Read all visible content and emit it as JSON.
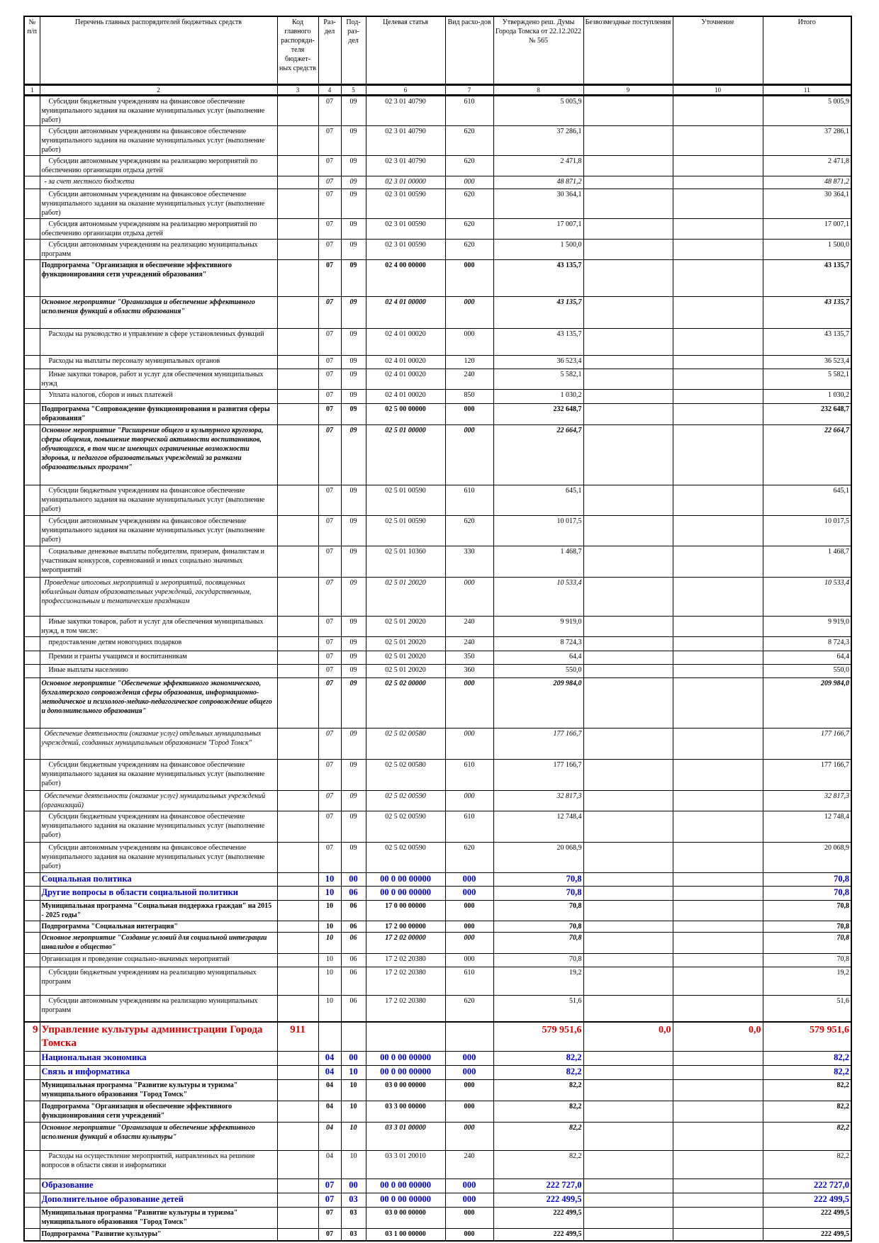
{
  "header": [
    "№ п/п",
    "Перечень главных распорядителей бюджетных средств",
    "Код главного распоряди-теля бюджет-ных средств",
    "Раз-дел",
    "Под-раз-дел",
    "Целевая статья",
    "Вид расхо-дов",
    "Утверждено реш. Думы Города Томска от 22.12.2022 № 565",
    "Безвозмездные поступления",
    "Уточнение",
    "Итого"
  ],
  "column_numbers": [
    "1",
    "2",
    "3",
    "4",
    "5",
    "6",
    "7",
    "8",
    "9",
    "10",
    "11"
  ],
  "rows": [
    {
      "s": "n",
      "name": "Субсидии бюджетным учреждениям на финансовое обеспечение муниципального задания на оказание муниципальных услуг (выполнение работ)",
      "rz": "07",
      "pr": "09",
      "cs": "02 3 01 40790",
      "vr": "610",
      "utv": "5 005,9",
      "itog": "5 005,9"
    },
    {
      "s": "n",
      "name": "Субсидии автономным учреждениям на финансовое обеспечение муниципального задания на оказание муниципальных услуг (выполнение работ)",
      "rz": "07",
      "pr": "09",
      "cs": "02 3 01 40790",
      "vr": "620",
      "utv": "37 286,1",
      "itog": "37 286,1"
    },
    {
      "s": "n",
      "name": "Субсидии автономным учреждениям на реализацию мероприятий по обеспечению организации отдыха детей",
      "rz": "07",
      "pr": "09",
      "cs": "02 3 01 40790",
      "vr": "620",
      "utv": "2 471,8",
      "itog": "2 471,8"
    },
    {
      "s": "i",
      "name": "- за счет местного бюджета",
      "rz": "07",
      "pr": "09",
      "cs": "02 3 01 00000",
      "vr": "000",
      "utv": "48 871,2",
      "itog": "48 871,2"
    },
    {
      "s": "n",
      "name": "Субсидии автономным учреждениям на финансовое обеспечение муниципального задания на оказание муниципальных услуг (выполнение работ)",
      "rz": "07",
      "pr": "09",
      "cs": "02 3 01 00590",
      "vr": "620",
      "utv": "30 364,1",
      "itog": "30 364,1"
    },
    {
      "s": "n",
      "name": "Субсидия автономным учреждениям на реализацию мероприятий по обеспечению организации отдыха детей",
      "rz": "07",
      "pr": "09",
      "cs": "02 3 01 00590",
      "vr": "620",
      "utv": "17 007,1",
      "itog": "17 007,1"
    },
    {
      "s": "n",
      "name": "Субсидии автономным учреждениям на реализацию муниципальных программ",
      "rz": "07",
      "pr": "09",
      "cs": "02 3 01 00590",
      "vr": "620",
      "utv": "1 500,0",
      "itog": "1 500,0"
    },
    {
      "s": "b",
      "name": "Подпрограмма \"Организация и обеспечение эффективного функционирования сети учреждений образования\"",
      "rz": "07",
      "pr": "09",
      "cs": "02 4 00 00000",
      "vr": "000",
      "utv": "43 135,7",
      "itog": "43 135,7"
    },
    {
      "s": "bi",
      "name": "Основное мероприятие \"Организация и обеспечение эффективного исполнения функций в области образования\"",
      "rz": "07",
      "pr": "09",
      "cs": "02 4 01 00000",
      "vr": "000",
      "utv": "43 135,7",
      "itog": "43 135,7"
    },
    {
      "s": "n",
      "name": "Расходы на руководство и управление в сфере установленных функций",
      "rz": "07",
      "pr": "09",
      "cs": "02 4 01 00020",
      "vr": "000",
      "utv": "43 135,7",
      "itog": "43 135,7"
    },
    {
      "s": "n",
      "name": "Расходы на выплаты персоналу муниципальных органов",
      "rz": "07",
      "pr": "09",
      "cs": "02 4 01 00020",
      "vr": "120",
      "utv": "36 523,4",
      "itog": "36 523,4"
    },
    {
      "s": "n",
      "name": "Иные закупки товаров, работ и услуг для обеспечения муниципальных нужд",
      "rz": "07",
      "pr": "09",
      "cs": "02 4 01 00020",
      "vr": "240",
      "utv": "5 582,1",
      "itog": "5 582,1"
    },
    {
      "s": "n",
      "name": "Уплата налогов, сборов и иных платежей",
      "rz": "07",
      "pr": "09",
      "cs": "02 4 01 00020",
      "vr": "850",
      "utv": "1 030,2",
      "itog": "1 030,2"
    },
    {
      "s": "b",
      "name": "Подпрограмма \"Сопровождение функционирования и развития сферы образования\"",
      "rz": "07",
      "pr": "09",
      "cs": "02 5 00 00000",
      "vr": "000",
      "utv": "232 648,7",
      "itog": "232 648,7"
    },
    {
      "s": "bi",
      "name": "Основное мероприятие \"Расширение общего и культурного кругозора, сферы общения, повышение творческой активности воспитанников, обучающихся, в том числе имеющих ограниченные возможности здоровья, и педагогов образовательных учреждений за рамками образовательных программ\"",
      "rz": "07",
      "pr": "09",
      "cs": "02 5 01 00000",
      "vr": "000",
      "utv": "22 664,7",
      "itog": "22 664,7"
    },
    {
      "s": "n",
      "name": "Субсидии бюджетным учреждениям на финансовое обеспечение муниципального задания на оказание муниципальных услуг (выполнение работ)",
      "rz": "07",
      "pr": "09",
      "cs": "02 5 01 00590",
      "vr": "610",
      "utv": "645,1",
      "itog": "645,1"
    },
    {
      "s": "n",
      "name": "Субсидии автономным учреждениям на финансовое обеспечение муниципального задания на оказание муниципальных услуг (выполнение работ)",
      "rz": "07",
      "pr": "09",
      "cs": "02 5 01 00590",
      "vr": "620",
      "utv": "10 017,5",
      "itog": "10 017,5"
    },
    {
      "s": "n",
      "name": "Социальные денежные выплаты победителям, призерам, финалистам и участникам конкурсов, соревнований и иных социально значимых мероприятий",
      "rz": "07",
      "pr": "09",
      "cs": "02 5 01 10360",
      "vr": "330",
      "utv": "1 468,7",
      "itog": "1 468,7"
    },
    {
      "s": "i",
      "name": "Проведение итоговых мероприятий и мероприятий, посвященных юбилейным датам образовательных учреждений, государственным, профессиональным и тематическим праздникам",
      "rz": "07",
      "pr": "09",
      "cs": "02 5 01 20020",
      "vr": "000",
      "utv": "10 533,4",
      "itog": "10 533,4"
    },
    {
      "s": "n",
      "name": "Иные закупки товаров, работ и услуг для обеспечения муниципальных нужд, в том числе:",
      "rz": "07",
      "pr": "09",
      "cs": "02 5 01 20020",
      "vr": "240",
      "utv": "9 919,0",
      "itog": "9 919,0"
    },
    {
      "s": "n",
      "name": "предоставление детям новогодних подарков",
      "rz": "07",
      "pr": "09",
      "cs": "02 5 01 20020",
      "vr": "240",
      "utv": "8 724,3",
      "itog": "8 724,3"
    },
    {
      "s": "n",
      "name": "Премии и гранты учащимся и воспитанникам",
      "rz": "07",
      "pr": "09",
      "cs": "02 5 01 20020",
      "vr": "350",
      "utv": "64,4",
      "itog": "64,4"
    },
    {
      "s": "n",
      "name": "Иные выплаты населению",
      "rz": "07",
      "pr": "09",
      "cs": "02 5 01 20020",
      "vr": "360",
      "utv": "550,0",
      "itog": "550,0"
    },
    {
      "s": "bi",
      "name": "Основное мероприятие \"Обеспечение эффективного экономического, бухгалтерского сопровождения сферы образования, информационно-методическое и психолого-медико-педагогическое сопровождение общего и дополнительного образования\"",
      "rz": "07",
      "pr": "09",
      "cs": "02 5 02 00000",
      "vr": "000",
      "utv": "209 984,0",
      "itog": "209 984,0"
    },
    {
      "s": "i",
      "name": "Обеспечение деятельности (оказание услуг) отдельных муниципальных учреждений, созданных муниципальным образованием \"Город Томск\"",
      "rz": "07",
      "pr": "09",
      "cs": "02 5 02 00580",
      "vr": "000",
      "utv": "177 166,7",
      "itog": "177 166,7"
    },
    {
      "s": "n",
      "name": "Субсидии бюджетным учреждениям на финансовое обеспечение муниципального задания на оказание муниципальных услуг (выполнение работ)",
      "rz": "07",
      "pr": "09",
      "cs": "02 5 02 00580",
      "vr": "610",
      "utv": "177 166,7",
      "itog": "177 166,7"
    },
    {
      "s": "i",
      "name": "Обеспечение деятельности (оказание услуг) муниципальных учреждений (организаций)",
      "rz": "07",
      "pr": "09",
      "cs": "02 5 02 00590",
      "vr": "000",
      "utv": "32 817,3",
      "itog": "32 817,3"
    },
    {
      "s": "n",
      "name": "Субсидии бюджетным учреждениям на финансовое обеспечение муниципального задания на оказание муниципальных услуг (выполнение работ)",
      "rz": "07",
      "pr": "09",
      "cs": "02 5 02 00590",
      "vr": "610",
      "utv": "12 748,4",
      "itog": "12 748,4"
    },
    {
      "s": "n",
      "name": "Субсидии автономным учреждениям на финансовое обеспечение муниципального задания на оказание муниципальных услуг (выполнение работ)",
      "rz": "07",
      "pr": "09",
      "cs": "02 5 02 00590",
      "vr": "620",
      "utv": "20 068,9",
      "itog": "20 068,9"
    },
    {
      "s": "blue",
      "name": "Социальная политика",
      "rz": "10",
      "pr": "00",
      "cs": "00 0 00 00000",
      "vr": "000",
      "utv": "70,8",
      "itog": "70,8"
    },
    {
      "s": "blue",
      "name": "Другие вопросы в области социальной политики",
      "rz": "10",
      "pr": "06",
      "cs": "00 0 00 00000",
      "vr": "000",
      "utv": "70,8",
      "itog": "70,8"
    },
    {
      "s": "b",
      "name": "Муниципальная программа \"Социальная поддержка граждан\" на 2015 - 2025 годы\"",
      "rz": "10",
      "pr": "06",
      "cs": "17 0 00 00000",
      "vr": "000",
      "utv": "70,8",
      "itog": "70,8"
    },
    {
      "s": "b",
      "name": "Подпрограмма \"Социальная интеграция\"",
      "rz": "10",
      "pr": "06",
      "cs": "17 2 00 00000",
      "vr": "000",
      "utv": "70,8",
      "itog": "70,8"
    },
    {
      "s": "bi",
      "name": "Основное мероприятие \"Создание условий для социальной интеграции инвалидов в общество\"",
      "rz": "10",
      "pr": "06",
      "cs": "17 2 02 00000",
      "vr": "000",
      "utv": "70,8",
      "itog": "70,8"
    },
    {
      "s": "n0",
      "name": "Организация и проведение социально-значимых мероприятий",
      "rz": "10",
      "pr": "06",
      "cs": "17 2 02 20380",
      "vr": "000",
      "utv": "70,8",
      "itog": "70,8"
    },
    {
      "s": "n",
      "name": "Субсидии бюджетным учреждениям на реализацию муниципальных программ",
      "rz": "10",
      "pr": "06",
      "cs": "17 2 02 20380",
      "vr": "610",
      "utv": "19,2",
      "itog": "19,2"
    },
    {
      "s": "n",
      "name": "Субсидии автономным учреждениям на реализацию муниципальных программ",
      "rz": "10",
      "pr": "06",
      "cs": "17 2 02 20380",
      "vr": "620",
      "utv": "51,6",
      "itog": "51,6"
    },
    {
      "s": "red",
      "no": "9",
      "name": "Управление культуры администрации Города Томска",
      "code": "911",
      "rz": "",
      "pr": "",
      "cs": "",
      "vr": "",
      "utv": "579 951,6",
      "bezv": "0,0",
      "utoch": "0,0",
      "itog": "579 951,6"
    },
    {
      "s": "blue",
      "name": "Национальная экономика",
      "rz": "04",
      "pr": "00",
      "cs": "00 0 00 00000",
      "vr": "000",
      "utv": "82,2",
      "itog": "82,2"
    },
    {
      "s": "blue",
      "name": "Связь и информатика",
      "rz": "04",
      "pr": "10",
      "cs": "00 0 00 00000",
      "vr": "000",
      "utv": "82,2",
      "itog": "82,2"
    },
    {
      "s": "b",
      "name": "Муниципальная программа \"Развитие культуры и туризма\" муниципального образования \"Город Томск\"",
      "rz": "04",
      "pr": "10",
      "cs": "03 0 00 00000",
      "vr": "000",
      "utv": "82,2",
      "itog": "82,2"
    },
    {
      "s": "b",
      "name": "Подпрограмма \"Организация и обеспечение эффективного функционирования сети учреждений\"",
      "rz": "04",
      "pr": "10",
      "cs": "03 3 00 00000",
      "vr": "000",
      "utv": "82,2",
      "itog": "82,2"
    },
    {
      "s": "bi",
      "name": "Основное мероприятие \"Организация и обеспечение эффективного исполнения функций в области культуры\"",
      "rz": "04",
      "pr": "10",
      "cs": "03 3 01 00000",
      "vr": "000",
      "utv": "82,2",
      "itog": "82,2"
    },
    {
      "s": "n",
      "name": "Расходы на осуществление мероприятий, направленных на решение вопросов в области связи и информатики",
      "rz": "04",
      "pr": "10",
      "cs": "03 3 01 20010",
      "vr": "240",
      "utv": "82,2",
      "itog": "82,2"
    },
    {
      "s": "blue",
      "name": "Образование",
      "rz": "07",
      "pr": "00",
      "cs": "00 0 00 00000",
      "vr": "000",
      "utv": "222 727,0",
      "itog": "222 727,0"
    },
    {
      "s": "blue",
      "name": "Дополнительное образование детей",
      "rz": "07",
      "pr": "03",
      "cs": "00 0 00 00000",
      "vr": "000",
      "utv": "222 499,5",
      "itog": "222 499,5"
    },
    {
      "s": "b",
      "name": "Муниципальная программа \"Развитие культуры и туризма\" муниципального образования \"Город Томск\"",
      "rz": "07",
      "pr": "03",
      "cs": "03 0 00 00000",
      "vr": "000",
      "utv": "222 499,5",
      "itog": "222 499,5"
    },
    {
      "s": "b",
      "name": "Подпрограмма \"Развитие культуры\"",
      "rz": "07",
      "pr": "03",
      "cs": "03 1 00 00000",
      "vr": "000",
      "utv": "222 499,5",
      "itog": "222 499,5"
    }
  ]
}
